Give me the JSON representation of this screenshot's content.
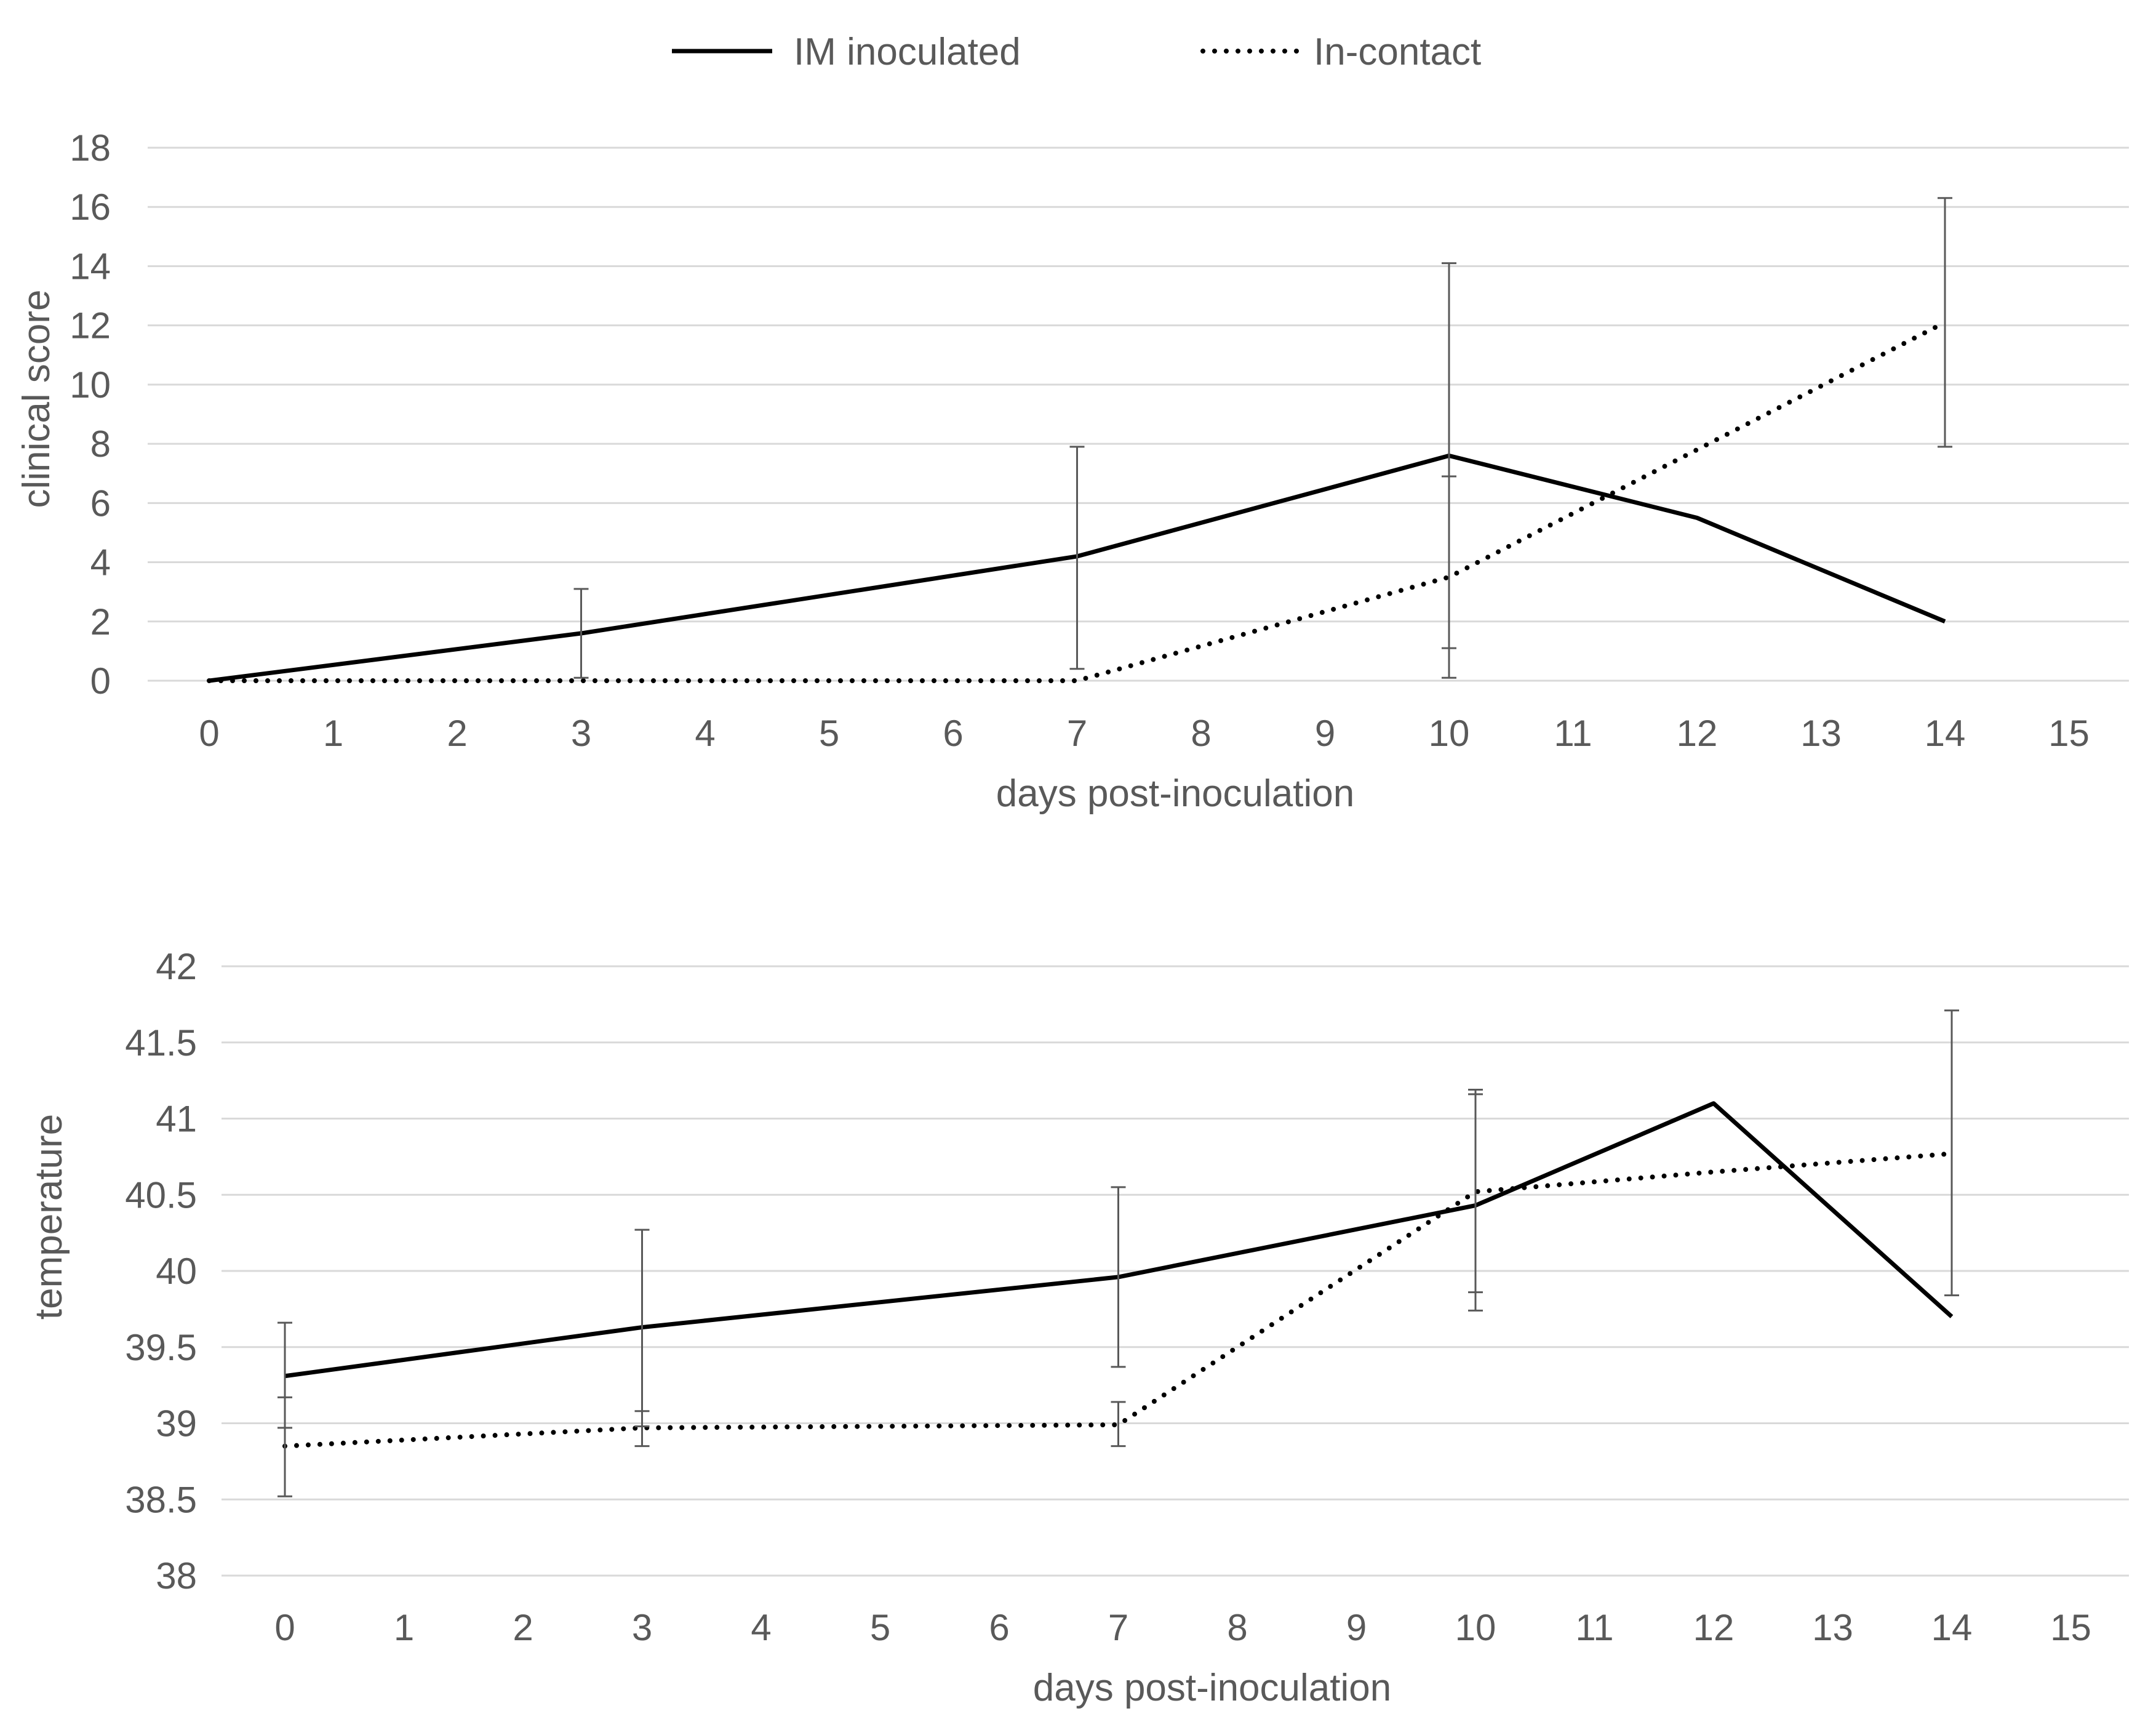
{
  "legend": {
    "im_label": "IM inoculated",
    "ic_label": "In-contact"
  },
  "chart_data": [
    {
      "type": "line",
      "title": "",
      "xlabel": "days post-inoculation",
      "ylabel": "clinical score",
      "xlim": [
        0,
        15
      ],
      "ylim": [
        0,
        18
      ],
      "x_ticks": [
        0,
        1,
        2,
        3,
        4,
        5,
        6,
        7,
        8,
        9,
        10,
        11,
        12,
        13,
        14,
        15
      ],
      "y_ticks": [
        0,
        2,
        4,
        6,
        8,
        10,
        12,
        14,
        16,
        18
      ],
      "grid": true,
      "legend_position": "top",
      "series": [
        {
          "name": "IM inoculated",
          "style": "solid",
          "x": [
            0,
            3,
            7,
            10,
            12,
            14
          ],
          "y": [
            0,
            1.6,
            4.2,
            7.6,
            5.5,
            2.0
          ],
          "err_low": [
            null,
            0.1,
            0.4,
            1.1,
            null,
            null
          ],
          "err_high": [
            null,
            3.1,
            7.9,
            14.1,
            null,
            null
          ]
        },
        {
          "name": "In-contact",
          "style": "dotted",
          "x": [
            0,
            3,
            7,
            10,
            12,
            14
          ],
          "y": [
            0,
            0,
            0,
            3.5,
            7.8,
            12.1
          ],
          "err_low": [
            null,
            null,
            null,
            0.1,
            null,
            7.9
          ],
          "err_high": [
            null,
            null,
            null,
            6.9,
            null,
            16.3
          ]
        }
      ]
    },
    {
      "type": "line",
      "title": "",
      "xlabel": "days post-inoculation",
      "ylabel": "temperature",
      "xlim": [
        0,
        15
      ],
      "ylim": [
        38,
        42
      ],
      "x_ticks": [
        0,
        1,
        2,
        3,
        4,
        5,
        6,
        7,
        8,
        9,
        10,
        11,
        12,
        13,
        14,
        15
      ],
      "y_ticks": [
        38,
        38.5,
        39,
        39.5,
        40,
        40.5,
        41,
        41.5,
        42
      ],
      "grid": true,
      "series": [
        {
          "name": "IM inoculated",
          "style": "solid",
          "x": [
            0,
            3,
            7,
            10,
            12,
            14
          ],
          "y": [
            39.31,
            39.63,
            39.96,
            40.43,
            41.1,
            39.7
          ],
          "err_low": [
            38.97,
            38.98,
            39.37,
            39.74,
            null,
            null
          ],
          "err_high": [
            39.66,
            40.27,
            40.55,
            41.19,
            null,
            null
          ]
        },
        {
          "name": "In-contact",
          "style": "dotted",
          "x": [
            0,
            3,
            7,
            10,
            12,
            14
          ],
          "y": [
            38.85,
            38.97,
            38.99,
            40.52,
            40.65,
            40.77
          ],
          "err_low": [
            38.52,
            38.85,
            38.85,
            39.86,
            null,
            39.84
          ],
          "err_high": [
            39.17,
            39.08,
            39.14,
            41.16,
            null,
            41.71
          ]
        }
      ]
    }
  ]
}
